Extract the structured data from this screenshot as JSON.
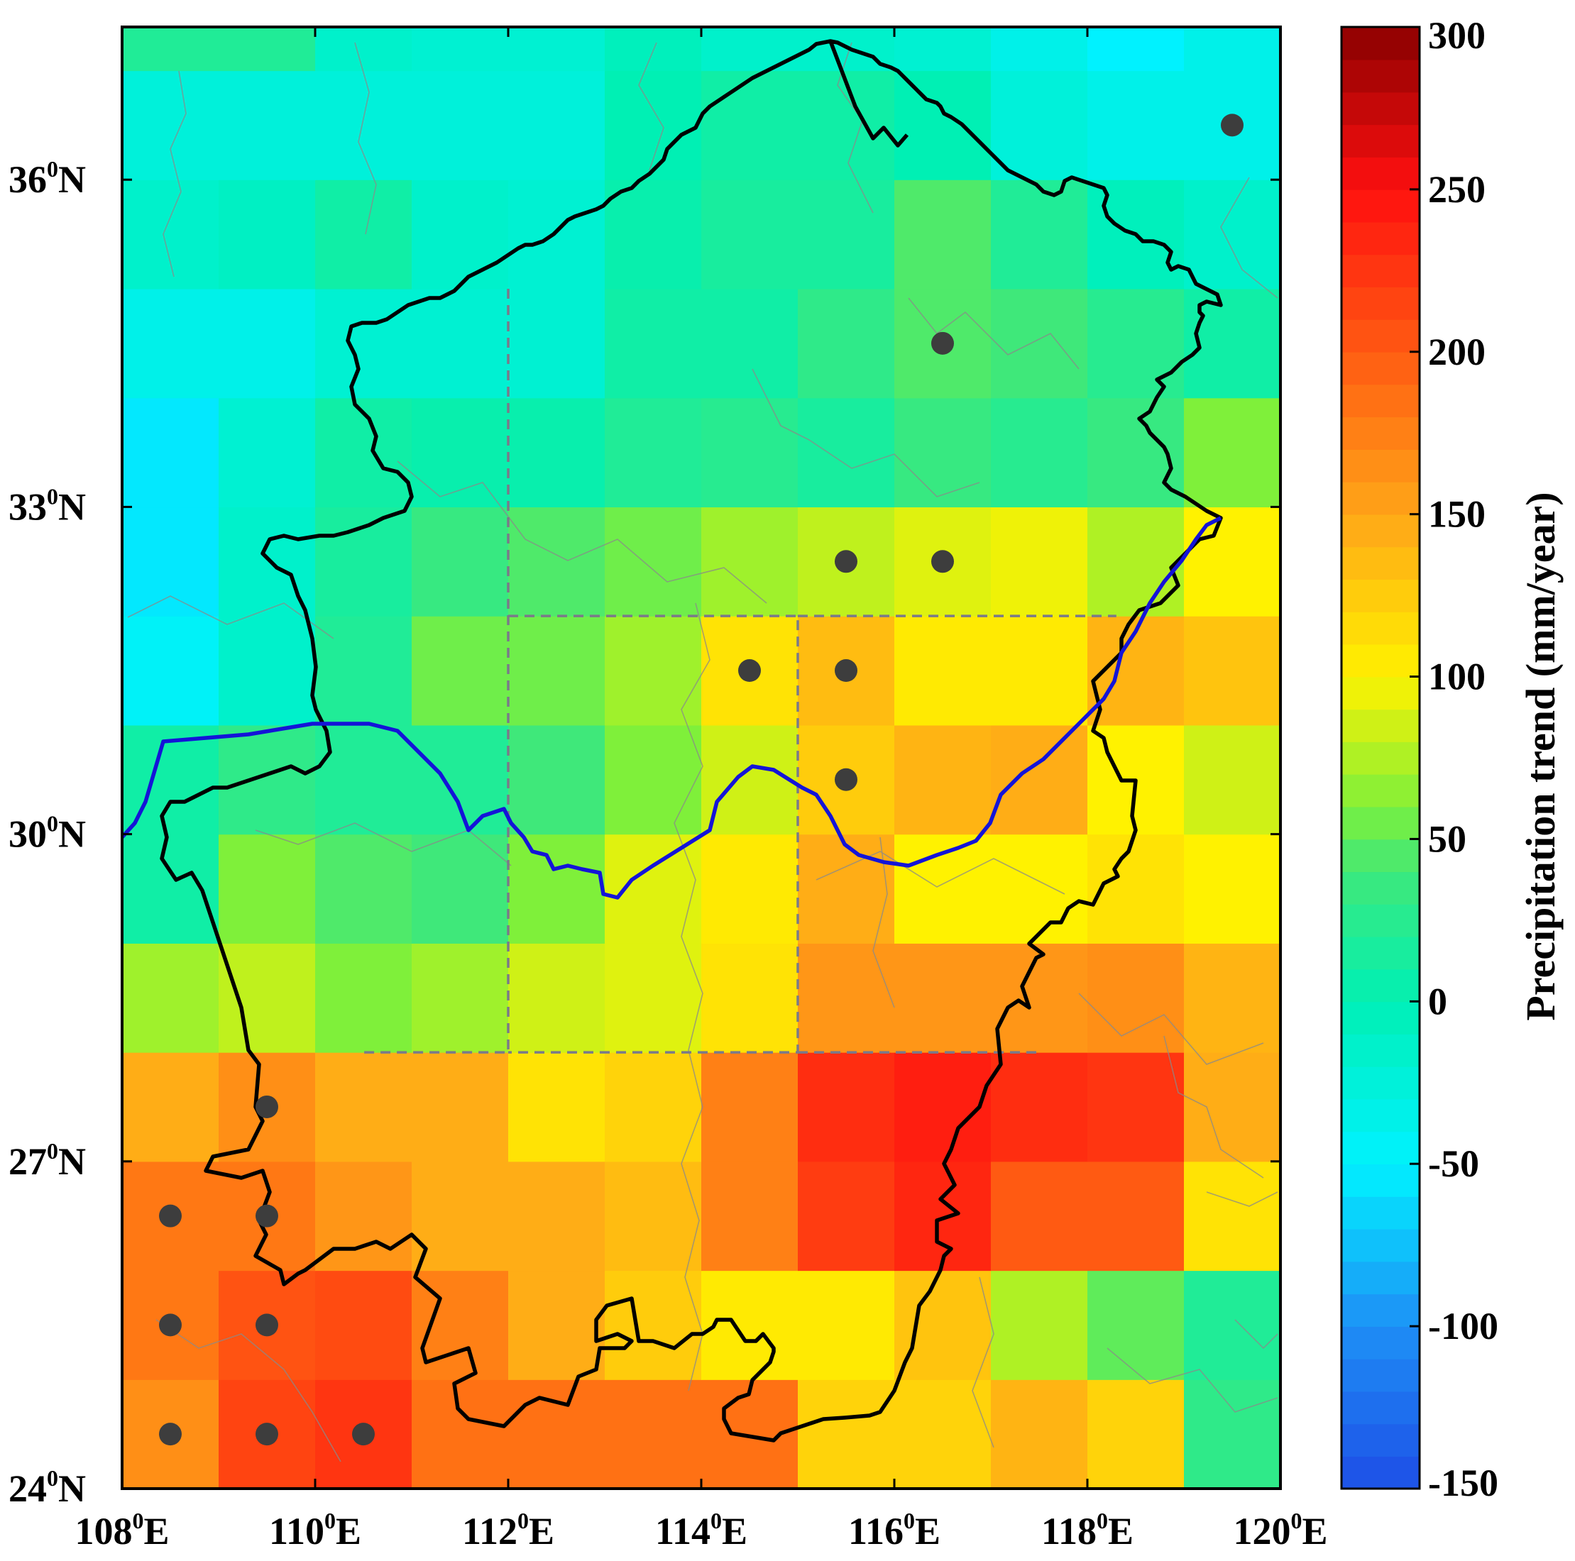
{
  "map": {
    "lon_range": [
      108,
      120
    ],
    "lat_range": [
      24,
      37.4
    ],
    "x_ticks": [
      {
        "value": 108,
        "label": "108",
        "suffix": "E"
      },
      {
        "value": 110,
        "label": "110",
        "suffix": "E"
      },
      {
        "value": 112,
        "label": "112",
        "suffix": "E"
      },
      {
        "value": 114,
        "label": "114",
        "suffix": "E"
      },
      {
        "value": 116,
        "label": "116",
        "suffix": "E"
      },
      {
        "value": 118,
        "label": "118",
        "suffix": "E"
      },
      {
        "value": 120,
        "label": "120",
        "suffix": "E"
      }
    ],
    "y_ticks": [
      {
        "value": 24,
        "label": "24",
        "suffix": "N"
      },
      {
        "value": 27,
        "label": "27",
        "suffix": "N"
      },
      {
        "value": 30,
        "label": "30",
        "suffix": "N"
      },
      {
        "value": 33,
        "label": "33",
        "suffix": "N"
      },
      {
        "value": 36,
        "label": "36",
        "suffix": "N"
      }
    ],
    "degree_symbol": "0",
    "grid": {
      "lon_start": 108,
      "lat_start": 24,
      "cell_deg": 1,
      "rows_south_to_north": [
        [
          165,
          215,
          225,
          185,
          185,
          185,
          185,
          120,
          120,
          140,
          120,
          30
        ],
        [
          180,
          205,
          210,
          175,
          145,
          125,
          105,
          105,
          130,
          75,
          50,
          20
        ],
        [
          180,
          180,
          160,
          145,
          145,
          135,
          175,
          220,
          235,
          200,
          200,
          110
        ],
        [
          145,
          165,
          145,
          145,
          110,
          120,
          175,
          230,
          240,
          230,
          225,
          145
        ],
        [
          70,
          80,
          60,
          70,
          85,
          90,
          110,
          160,
          160,
          160,
          165,
          140
        ],
        [
          10,
          60,
          45,
          40,
          60,
          90,
          105,
          145,
          100,
          100,
          110,
          100
        ],
        [
          10,
          30,
          20,
          20,
          40,
          60,
          85,
          125,
          140,
          145,
          100,
          85
        ],
        [
          -45,
          -15,
          20,
          55,
          55,
          70,
          110,
          135,
          105,
          105,
          140,
          130
        ],
        [
          -55,
          -15,
          15,
          35,
          45,
          55,
          70,
          80,
          90,
          95,
          75,
          100
        ],
        [
          -55,
          -20,
          10,
          5,
          5,
          20,
          25,
          15,
          35,
          25,
          35,
          60
        ],
        [
          -35,
          -35,
          -20,
          -20,
          -20,
          10,
          10,
          30,
          45,
          40,
          25,
          10
        ],
        [
          -15,
          -10,
          10,
          -15,
          -20,
          5,
          15,
          15,
          45,
          20,
          -5,
          -15
        ],
        [
          -25,
          -25,
          -25,
          -25,
          -25,
          0,
          10,
          10,
          0,
          -25,
          -35,
          -35
        ],
        [
          20,
          20,
          -15,
          -20,
          -20,
          -5,
          -15,
          -15,
          -20,
          -35,
          -50,
          -35
        ]
      ]
    },
    "significant_points": [
      {
        "lon": 119.5,
        "lat": 36.5
      },
      {
        "lon": 116.5,
        "lat": 34.5
      },
      {
        "lon": 115.5,
        "lat": 32.5
      },
      {
        "lon": 116.5,
        "lat": 32.5
      },
      {
        "lon": 114.5,
        "lat": 31.5
      },
      {
        "lon": 115.5,
        "lat": 31.5
      },
      {
        "lon": 115.5,
        "lat": 30.5
      },
      {
        "lon": 109.5,
        "lat": 27.5
      },
      {
        "lon": 108.5,
        "lat": 26.5
      },
      {
        "lon": 109.5,
        "lat": 26.5
      },
      {
        "lon": 108.5,
        "lat": 25.5
      },
      {
        "lon": 109.5,
        "lat": 25.5
      },
      {
        "lon": 108.5,
        "lat": 24.5
      },
      {
        "lon": 109.5,
        "lat": 24.5
      },
      {
        "lon": 110.5,
        "lat": 24.5
      }
    ],
    "colors": {
      "boundary": "#000000",
      "river": "#1414d8",
      "dashed_box": "#7a7a8a",
      "dots": "#3d3d3d",
      "faint_lines": "#8a8a8a"
    }
  },
  "colorbar": {
    "min": -150,
    "max": 300,
    "ticks": [
      "300",
      "250",
      "200",
      "150",
      "100",
      "50",
      "0",
      "-50",
      "-100",
      "-150"
    ],
    "tick_values": [
      300,
      250,
      200,
      150,
      100,
      50,
      0,
      -50,
      -100,
      -150
    ],
    "title": "Precipitation trend (mm/year)",
    "stops": [
      {
        "value": -150,
        "color": "#1e4fe6"
      },
      {
        "value": -100,
        "color": "#1e8ff6"
      },
      {
        "value": -50,
        "color": "#00f2ff"
      },
      {
        "value": 0,
        "color": "#00f0b4"
      },
      {
        "value": 40,
        "color": "#3fe87a"
      },
      {
        "value": 60,
        "color": "#7ff03a"
      },
      {
        "value": 100,
        "color": "#fff200"
      },
      {
        "value": 150,
        "color": "#ffa518"
      },
      {
        "value": 200,
        "color": "#ff5a12"
      },
      {
        "value": 250,
        "color": "#ff0f0f"
      },
      {
        "value": 300,
        "color": "#8a0000"
      }
    ]
  }
}
